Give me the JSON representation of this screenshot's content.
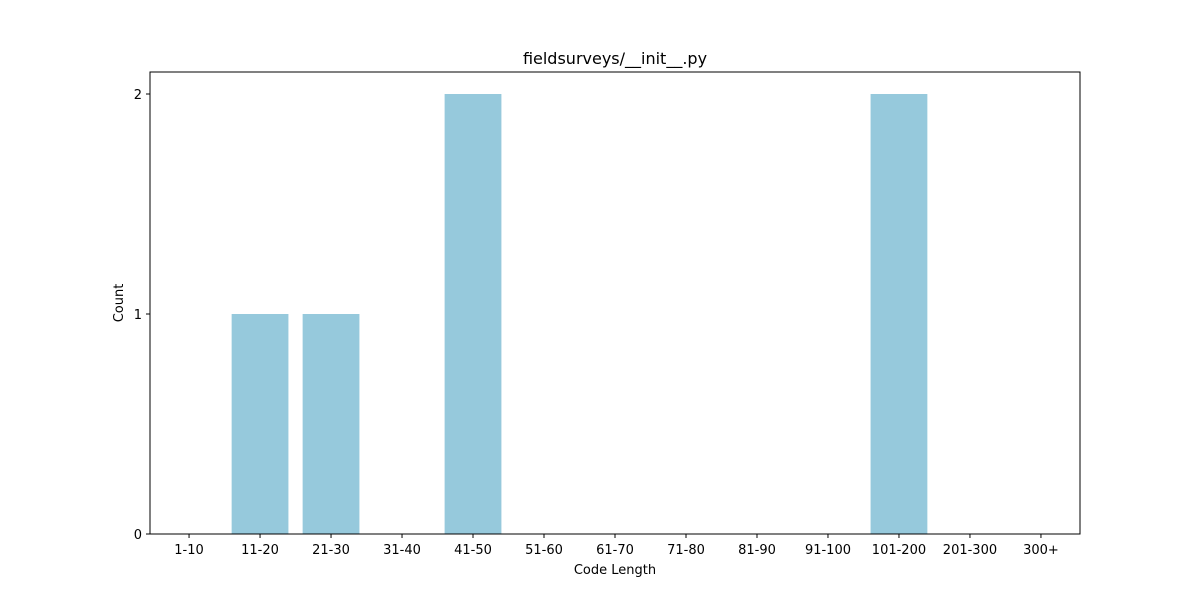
{
  "chart_data": {
    "type": "bar",
    "title": "fieldsurveys/__init__.py",
    "xlabel": "Code Length",
    "ylabel": "Count",
    "categories": [
      "1-10",
      "11-20",
      "21-30",
      "31-40",
      "41-50",
      "51-60",
      "61-70",
      "71-80",
      "81-90",
      "91-100",
      "101-200",
      "201-300",
      "300+"
    ],
    "values": [
      0,
      1,
      1,
      0,
      2,
      0,
      0,
      0,
      0,
      0,
      2,
      0,
      0
    ],
    "ylim": [
      0,
      2.1
    ],
    "yticks": [
      0,
      1,
      2
    ],
    "bar_color": "#96c9dc",
    "grid": false,
    "legend": "none"
  }
}
